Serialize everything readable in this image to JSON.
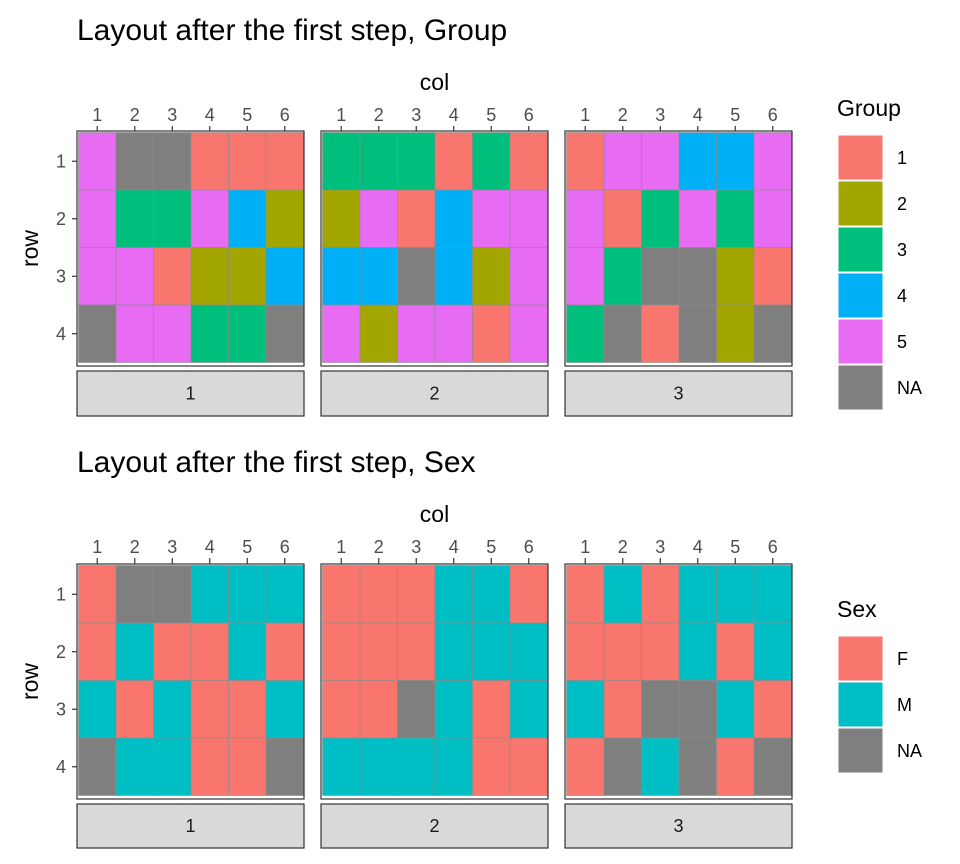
{
  "chart_data": [
    {
      "type": "heatmap",
      "title": "Layout after the first step, Group",
      "xlabel": "col",
      "ylabel": "row",
      "x_categories": [
        "1",
        "2",
        "3",
        "4",
        "5",
        "6"
      ],
      "y_categories": [
        "1",
        "2",
        "3",
        "4"
      ],
      "legend": {
        "title": "Group",
        "placement": "right",
        "entries": [
          {
            "label": "1",
            "color": "#F8766D"
          },
          {
            "label": "2",
            "color": "#A3A500"
          },
          {
            "label": "3",
            "color": "#00BF7D"
          },
          {
            "label": "4",
            "color": "#00B0F6"
          },
          {
            "label": "5",
            "color": "#E76BF3"
          },
          {
            "label": "NA",
            "color": "#7F7F7F"
          }
        ]
      },
      "facets": [
        {
          "label": "1",
          "grid": [
            [
              "5",
              "NA",
              "NA",
              "1",
              "1",
              "1"
            ],
            [
              "5",
              "3",
              "3",
              "5",
              "4",
              "2"
            ],
            [
              "5",
              "5",
              "1",
              "2",
              "2",
              "4"
            ],
            [
              "NA",
              "5",
              "5",
              "3",
              "3",
              "NA"
            ]
          ]
        },
        {
          "label": "2",
          "grid": [
            [
              "3",
              "3",
              "3",
              "1",
              "3",
              "1"
            ],
            [
              "2",
              "5",
              "1",
              "4",
              "5",
              "5"
            ],
            [
              "4",
              "4",
              "NA",
              "4",
              "2",
              "5"
            ],
            [
              "5",
              "2",
              "5",
              "5",
              "1",
              "5"
            ]
          ]
        },
        {
          "label": "3",
          "grid": [
            [
              "1",
              "5",
              "5",
              "4",
              "4",
              "5"
            ],
            [
              "5",
              "1",
              "3",
              "5",
              "3",
              "5"
            ],
            [
              "5",
              "3",
              "NA",
              "NA",
              "2",
              "1"
            ],
            [
              "3",
              "NA",
              "1",
              "NA",
              "2",
              "NA"
            ]
          ]
        }
      ]
    },
    {
      "type": "heatmap",
      "title": "Layout after the first step, Sex",
      "xlabel": "col",
      "ylabel": "row",
      "x_categories": [
        "1",
        "2",
        "3",
        "4",
        "5",
        "6"
      ],
      "y_categories": [
        "1",
        "2",
        "3",
        "4"
      ],
      "legend": {
        "title": "Sex",
        "placement": "right",
        "entries": [
          {
            "label": "F",
            "color": "#F8766D"
          },
          {
            "label": "M",
            "color": "#00BFC4"
          },
          {
            "label": "NA",
            "color": "#7F7F7F"
          }
        ]
      },
      "facets": [
        {
          "label": "1",
          "grid": [
            [
              "F",
              "NA",
              "NA",
              "M",
              "M",
              "M"
            ],
            [
              "F",
              "M",
              "F",
              "F",
              "M",
              "F"
            ],
            [
              "M",
              "F",
              "M",
              "F",
              "F",
              "M"
            ],
            [
              "NA",
              "M",
              "M",
              "F",
              "F",
              "NA"
            ]
          ]
        },
        {
          "label": "2",
          "grid": [
            [
              "F",
              "F",
              "F",
              "M",
              "M",
              "F"
            ],
            [
              "F",
              "F",
              "F",
              "M",
              "M",
              "M"
            ],
            [
              "F",
              "F",
              "NA",
              "M",
              "F",
              "M"
            ],
            [
              "M",
              "M",
              "M",
              "M",
              "F",
              "F"
            ]
          ]
        },
        {
          "label": "3",
          "grid": [
            [
              "F",
              "M",
              "F",
              "M",
              "M",
              "M"
            ],
            [
              "F",
              "F",
              "F",
              "M",
              "F",
              "M"
            ],
            [
              "M",
              "F",
              "NA",
              "NA",
              "M",
              "F"
            ],
            [
              "F",
              "NA",
              "M",
              "NA",
              "F",
              "NA"
            ]
          ]
        }
      ]
    }
  ]
}
